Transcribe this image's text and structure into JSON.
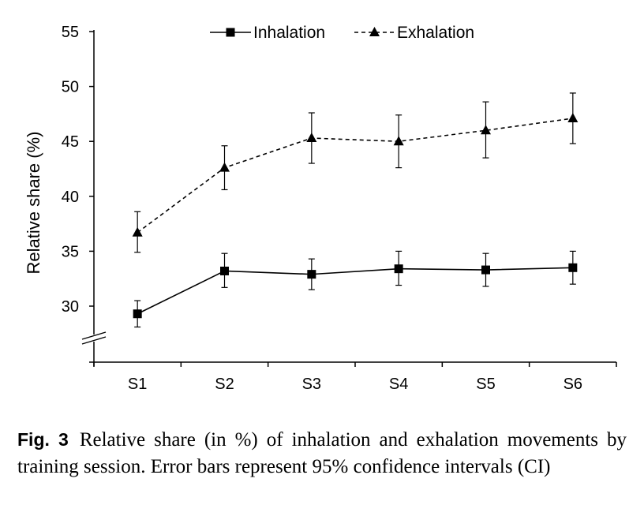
{
  "chart_data": {
    "type": "line",
    "categories": [
      "S1",
      "S2",
      "S3",
      "S4",
      "S5",
      "S6"
    ],
    "ylabel": "Relative share (%)",
    "xlabel": "",
    "ylim": [
      25,
      55
    ],
    "yticks": [
      30,
      35,
      40,
      45,
      50,
      55
    ],
    "axis_break": true,
    "grid": false,
    "legend_position": "top",
    "series": [
      {
        "name": "Inhalation",
        "line_style": "solid",
        "marker": "square",
        "color": "#000000",
        "values": [
          29.3,
          33.2,
          32.9,
          33.4,
          33.3,
          33.5
        ],
        "ci_lower": [
          28.1,
          31.7,
          31.5,
          31.9,
          31.8,
          32.0
        ],
        "ci_upper": [
          30.5,
          34.8,
          34.3,
          35.0,
          34.8,
          35.0
        ]
      },
      {
        "name": "Exhalation",
        "line_style": "dashed",
        "marker": "triangle",
        "color": "#000000",
        "values": [
          36.7,
          42.6,
          45.3,
          45.0,
          46.0,
          47.1
        ],
        "ci_lower": [
          34.9,
          40.6,
          43.0,
          42.6,
          43.5,
          44.8
        ],
        "ci_upper": [
          38.6,
          44.6,
          47.6,
          47.4,
          48.6,
          49.4
        ]
      }
    ]
  },
  "caption": {
    "label": "Fig. 3",
    "text": "Relative share (in %) of inhalation and exhalation movements by training session. Error bars represent 95% confidence intervals (CI)"
  }
}
